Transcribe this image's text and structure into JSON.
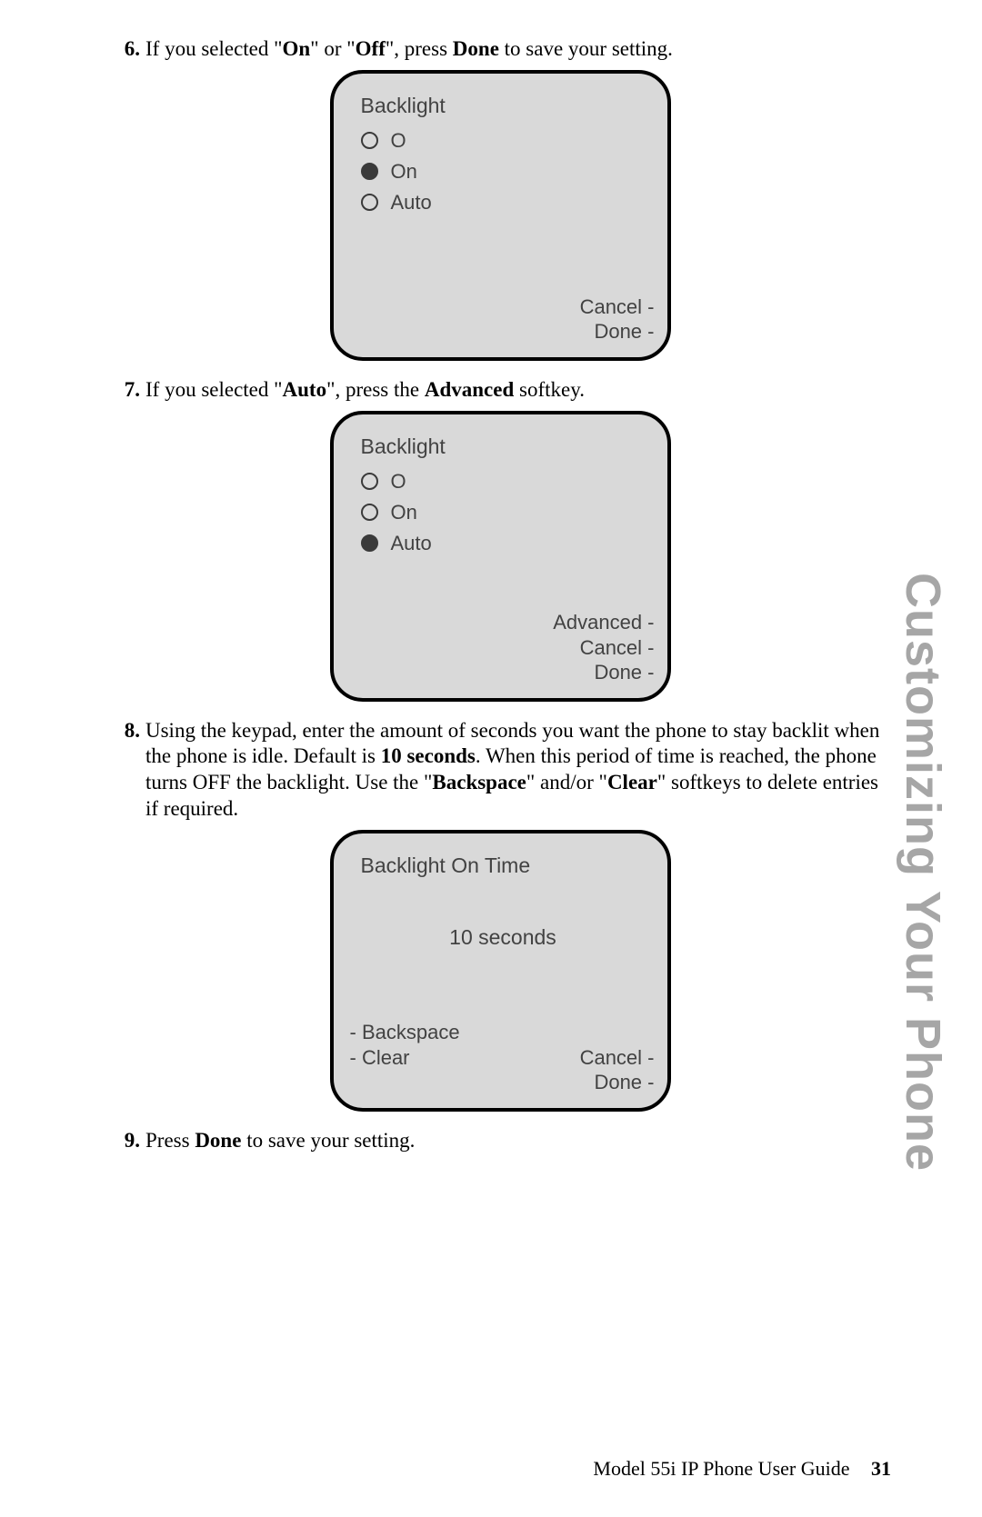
{
  "side_title": "Customizing Your Phone",
  "footer": {
    "guide": "Model 55i IP Phone User Guide",
    "page": "31"
  },
  "steps": {
    "s6": {
      "num": "6.",
      "prefix": "If you selected \"",
      "bold1": "On",
      "mid1": "\" or \"",
      "bold2": "Off",
      "mid2": "\", press ",
      "bold3": "Done",
      "suffix": " to save your setting."
    },
    "s7": {
      "num": "7.",
      "prefix": "If you selected \"",
      "bold1": "Auto",
      "mid1": "\", press the ",
      "bold2": "Advanced",
      "suffix": " softkey."
    },
    "s8": {
      "num": "8.",
      "t1": "Using the keypad, enter the amount of seconds you want the phone to stay backlit when the phone is idle. Default is ",
      "b1": "10 seconds",
      "t2": ". When this period of time is reached, the phone turns OFF the backlight. Use the \"",
      "b2": "Backspace",
      "t3": "\" and/or \"",
      "b3": "Clear",
      "t4": "\" softkeys to delete entries if required."
    },
    "s9": {
      "num": "9.",
      "t1": "Press ",
      "b1": "Done",
      "t2": " to save your setting."
    }
  },
  "screen1": {
    "title": "Backlight",
    "options": {
      "o0": "O",
      "o1": "On",
      "o2": "Auto"
    },
    "selected_index": 1,
    "softkeys_right": {
      "k0": "Cancel -",
      "k1": "Done -"
    }
  },
  "screen2": {
    "title": "Backlight",
    "options": {
      "o0": "O",
      "o1": "On",
      "o2": "Auto"
    },
    "selected_index": 2,
    "softkeys_right": {
      "k0": "Advanced -",
      "k1": "Cancel -",
      "k2": "Done -"
    }
  },
  "screen3": {
    "title": "Backlight On Time",
    "value": "10 seconds",
    "softkeys_left": {
      "k0": "- Backspace",
      "k1": "- Clear"
    },
    "softkeys_right": {
      "k0": "Cancel -",
      "k1": "Done -"
    }
  },
  "colors": {
    "screen_bg": "#d9d9d9",
    "screen_border": "#000000",
    "screen_text": "#424242",
    "side_title": "#a6a6a6",
    "body_text": "#000000",
    "page_bg": "#ffffff"
  }
}
